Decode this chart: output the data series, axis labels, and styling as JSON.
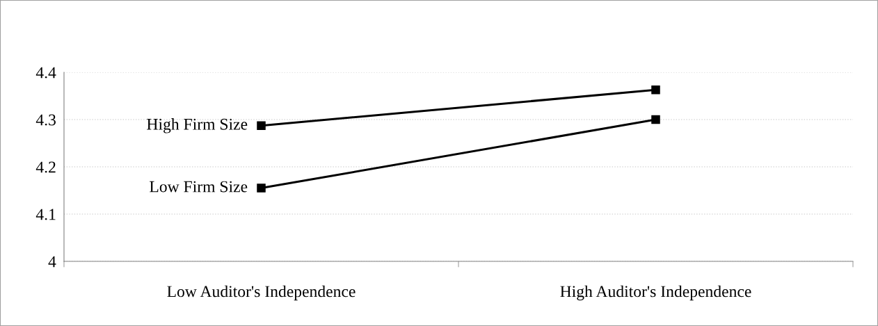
{
  "chart_data": {
    "type": "line",
    "categories": [
      "Low Auditor's Independence",
      "High Auditor's Independence"
    ],
    "series": [
      {
        "name": "High Firm Size",
        "color": "#000000",
        "values": [
          4.287,
          4.363
        ]
      },
      {
        "name": "Low Firm Size",
        "color": "#000000",
        "values": [
          4.155,
          4.3
        ]
      }
    ],
    "ylim": [
      4,
      4.4
    ],
    "yticks": [
      4,
      4.1,
      4.2,
      4.3,
      4.4
    ],
    "grid": "y",
    "marker": "square",
    "line_style": "solid",
    "legend": false
  }
}
